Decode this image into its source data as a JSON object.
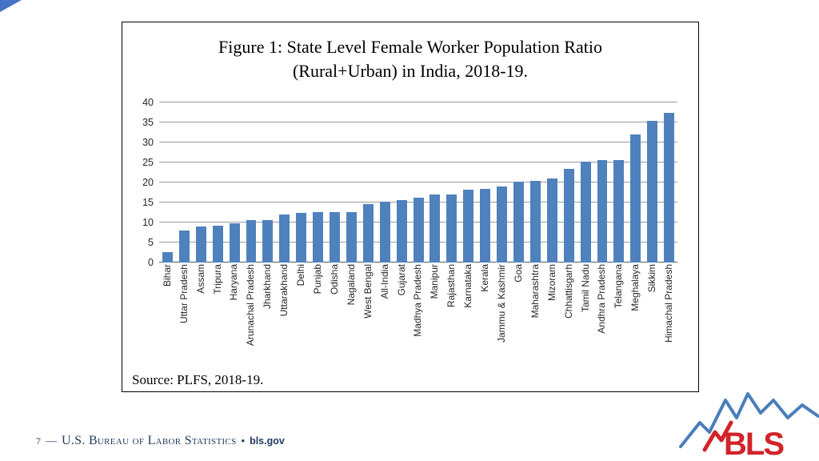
{
  "logo": {
    "text": "BLS"
  },
  "footer": {
    "page_number": "7",
    "dash": "—",
    "org": "U.S. Bureau of Labor Statistics",
    "bullet": "•",
    "site": "bls.gov"
  },
  "chart_data": {
    "type": "bar",
    "title": "Figure 1: State Level Female Worker Population Ratio (Rural+Urban) in India, 2018-19.",
    "title_lines": [
      "Figure 1: State Level Female Worker Population Ratio",
      "(Rural+Urban) in India, 2018-19."
    ],
    "source_note": "Source: PLFS,  2018-19.",
    "categories": [
      "Bihar",
      "Uttar Pradesh",
      "Assam",
      "Tripura",
      "Haryana",
      "Arunachal Pradesh",
      "Jharkhand",
      "Uttarakhand",
      "Delhi",
      "Punjab",
      "Odisha",
      "Nagaland",
      "West Bengal",
      "All-India",
      "Gujarat",
      "Madhya Pradesh",
      "Manipur",
      "Rajasthan",
      "Karnataka",
      "Kerala",
      "Jammu & Kashmir",
      "Goa",
      "Maharashtra",
      "Mizoram",
      "Chhattisgarh",
      "Tamil Nadu",
      "Andhra Pradesh",
      "Telangana",
      "Meghalaya",
      "Sikkim",
      "Himachal Pradesh"
    ],
    "values": [
      2.6,
      8.1,
      9.0,
      9.2,
      9.9,
      10.6,
      10.7,
      12.0,
      12.5,
      12.6,
      12.6,
      12.7,
      14.7,
      15.2,
      15.6,
      16.2,
      17.0,
      17.1,
      18.2,
      18.4,
      19.0,
      20.2,
      20.4,
      21.0,
      23.4,
      25.2,
      25.6,
      25.7,
      32.0,
      35.4,
      37.4
    ],
    "xlabel": "",
    "ylabel": "",
    "ylim": [
      0,
      40
    ],
    "yticks": [
      0,
      5,
      10,
      15,
      20,
      25,
      30,
      35,
      40
    ],
    "bar_color": "#4F81BD",
    "gridline_color": "#9C9C9C",
    "grid": true,
    "legend": "none"
  }
}
